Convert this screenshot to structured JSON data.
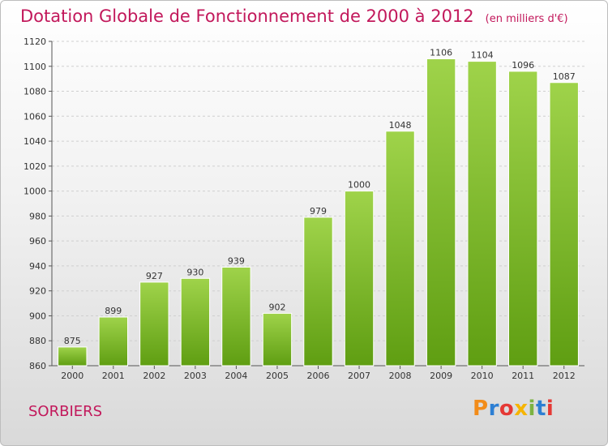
{
  "chart_data": {
    "type": "bar",
    "title": "Dotation Globale de Fonctionnement de 2000 à 2012",
    "subtitle": "(en milliers d'€)",
    "categories": [
      "2000",
      "2001",
      "2002",
      "2003",
      "2004",
      "2005",
      "2006",
      "2007",
      "2008",
      "2009",
      "2010",
      "2011",
      "2012"
    ],
    "values": [
      875,
      899,
      927,
      930,
      939,
      902,
      979,
      1000,
      1048,
      1106,
      1104,
      1096,
      1087
    ],
    "ylim": [
      860,
      1120
    ],
    "yticks": [
      860,
      880,
      900,
      920,
      940,
      960,
      980,
      1000,
      1020,
      1040,
      1060,
      1080,
      1100,
      1120
    ],
    "xlabel": "",
    "ylabel": "",
    "grid": true,
    "legend": "none",
    "colors": {
      "bar_top": "#9fd34a",
      "bar_bottom": "#5f9e12",
      "grid": "#cfcfcf",
      "title": "#c2185b"
    }
  },
  "footer": {
    "town": "SORBIERS",
    "logo": {
      "letters": [
        "P",
        "r",
        "o",
        "x",
        "i",
        "t",
        "i"
      ],
      "colors": [
        "#f28c1a",
        "#2d7fd3",
        "#e53935",
        "#f6b400",
        "#7cb342",
        "#2d7fd3",
        "#e53935"
      ]
    }
  }
}
